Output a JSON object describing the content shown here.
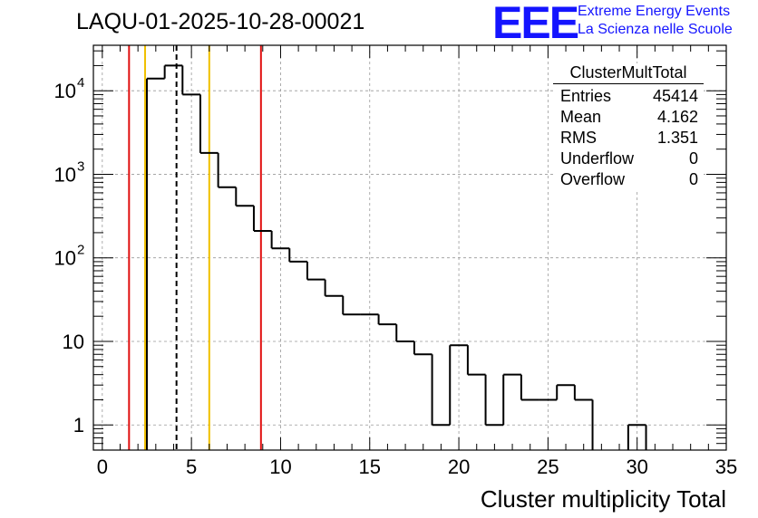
{
  "chart_data": {
    "type": "histogram",
    "title": "LAQU-01-2025-10-28-00021",
    "xlabel": "Cluster multiplicity Total",
    "ylabel": "",
    "yscale": "log",
    "xlim": [
      -0.5,
      35
    ],
    "ylim": [
      0.5,
      35000
    ],
    "bin_width": 1,
    "bin_start": 0.5,
    "values": [
      0,
      0,
      14000,
      20000,
      9000,
      1800,
      700,
      420,
      210,
      130,
      90,
      55,
      35,
      21,
      21,
      16,
      10,
      7,
      1,
      9,
      4,
      1,
      4,
      2,
      2,
      3,
      2,
      0,
      0,
      1,
      0,
      0,
      0,
      0
    ],
    "x_ticks": [
      {
        "value": 0,
        "label": "0"
      },
      {
        "value": 5,
        "label": "5"
      },
      {
        "value": 10,
        "label": "10"
      },
      {
        "value": 15,
        "label": "15"
      },
      {
        "value": 20,
        "label": "20"
      },
      {
        "value": 25,
        "label": "25"
      },
      {
        "value": 30,
        "label": "30"
      },
      {
        "value": 35,
        "label": "35"
      }
    ],
    "y_ticks": [
      {
        "value": 1,
        "label": "1",
        "exp": ""
      },
      {
        "value": 10,
        "label": "10",
        "exp": ""
      },
      {
        "value": 100,
        "label": "10",
        "exp": "2"
      },
      {
        "value": 1000,
        "label": "10",
        "exp": "3"
      },
      {
        "value": 10000,
        "label": "10",
        "exp": "4"
      }
    ],
    "vertical_lines": [
      {
        "x": 1.5,
        "color": "#e01010",
        "style": "solid"
      },
      {
        "x": 2.4,
        "color": "#f0c000",
        "style": "solid"
      },
      {
        "x": 4.162,
        "color": "#000000",
        "style": "dashed"
      },
      {
        "x": 6.0,
        "color": "#f0c000",
        "style": "solid"
      },
      {
        "x": 8.9,
        "color": "#e01010",
        "style": "solid"
      }
    ],
    "grid": true
  },
  "stats": {
    "name": "ClusterMultTotal",
    "rows": [
      {
        "label": "Entries",
        "value": "45414"
      },
      {
        "label": "Mean",
        "value": "4.162"
      },
      {
        "label": "RMS",
        "value": "1.351"
      },
      {
        "label": "Underflow",
        "value": "0"
      },
      {
        "label": "Overflow",
        "value": "0"
      }
    ]
  },
  "logo": {
    "text": "EEE",
    "line1": "Extreme Energy Events",
    "line2": "La Scienza nelle Scuole",
    "color": "#1414ff"
  }
}
